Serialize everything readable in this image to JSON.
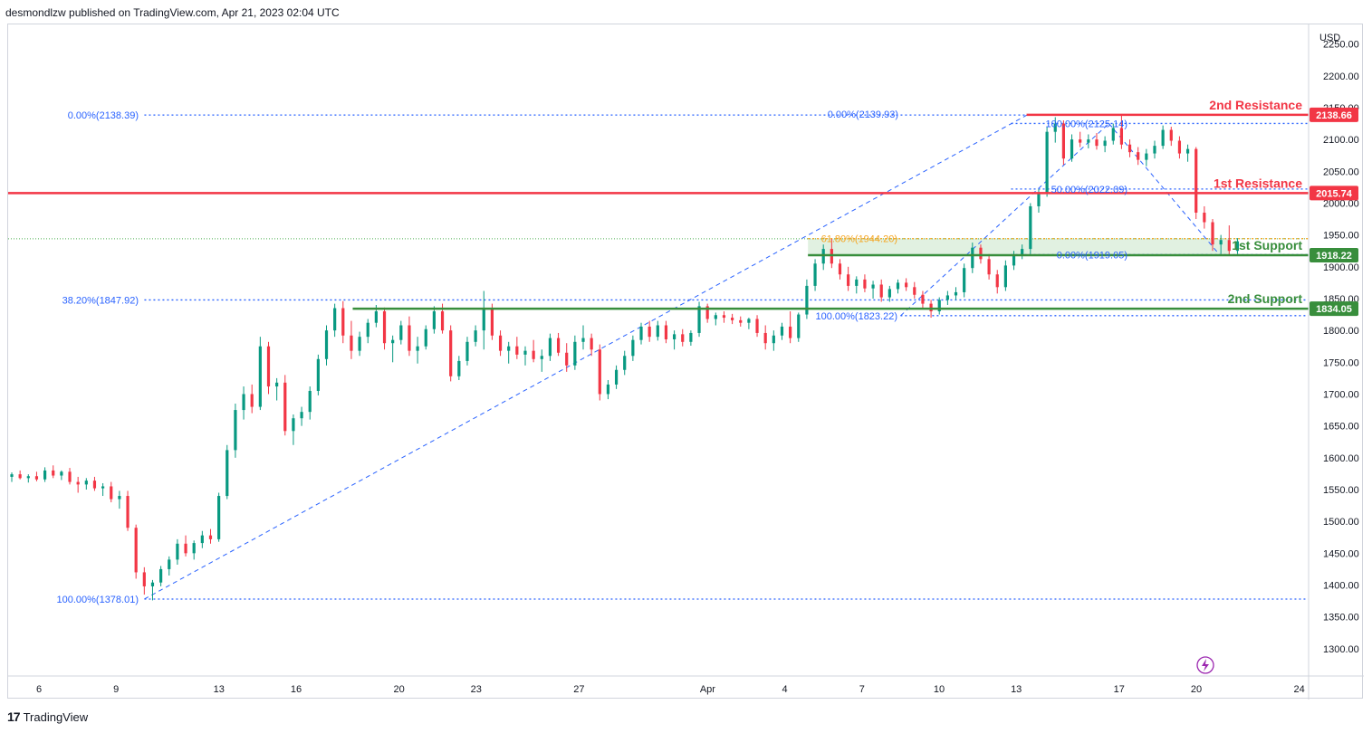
{
  "header": {
    "text": "desmondlzw published on TradingView.com, Apr 21, 2023 02:04 UTC"
  },
  "footer": {
    "logo": "17",
    "brand": "TradingView"
  },
  "chart_data": {
    "type": "candlestick",
    "currency_label": "USD",
    "y_ticks": [
      "2250.00",
      "2200.00",
      "2150.00",
      "2100.00",
      "2050.00",
      "2000.00",
      "1950.00",
      "1900.00",
      "1850.00",
      "1800.00",
      "1750.00",
      "1700.00",
      "1650.00",
      "1600.00",
      "1550.00",
      "1500.00",
      "1450.00",
      "1400.00",
      "1350.00",
      "1300.00"
    ],
    "ylim": [
      1260,
      2275
    ],
    "x_ticks": [
      {
        "label": "6",
        "day": 6
      },
      {
        "label": "9",
        "day": 9
      },
      {
        "label": "13",
        "day": 13
      },
      {
        "label": "16",
        "day": 16
      },
      {
        "label": "20",
        "day": 20
      },
      {
        "label": "23",
        "day": 23
      },
      {
        "label": "27",
        "day": 27
      },
      {
        "label": "Apr",
        "day": 32
      },
      {
        "label": "4",
        "day": 35
      },
      {
        "label": "7",
        "day": 38
      },
      {
        "label": "10",
        "day": 41
      },
      {
        "label": "13",
        "day": 44
      },
      {
        "label": "17",
        "day": 48
      },
      {
        "label": "20",
        "day": 51
      },
      {
        "label": "24",
        "day": 55
      }
    ],
    "levels": [
      {
        "name": "2nd Resistance",
        "value": 2138.66,
        "label": "2138.66",
        "color": "#f23645"
      },
      {
        "name": "1st Resistance",
        "value": 2015.74,
        "label": "2015.74",
        "color": "#f23645"
      },
      {
        "name": "1st Support",
        "value": 1918.22,
        "label": "1918.22",
        "color": "#388e3c"
      },
      {
        "name": "2nd Support",
        "value": 1834.05,
        "label": "1834.05",
        "color": "#388e3c"
      }
    ],
    "fib_labels": [
      {
        "text": "0.00%(2138.39)",
        "value": 2138.39,
        "color": "#2962ff"
      },
      {
        "text": "38.20%(1847.92)",
        "value": 1847.92,
        "color": "#2962ff"
      },
      {
        "text": "100.00%(1378.01)",
        "value": 1378.01,
        "color": "#2962ff"
      },
      {
        "text": "0.00%(2139.93)",
        "value": 2139.93,
        "color": "#2962ff"
      },
      {
        "text": "100.00%(2125.14)",
        "value": 2125.14,
        "color": "#2962ff"
      },
      {
        "text": "50.00%(2022.09)",
        "value": 2022.09,
        "color": "#2962ff"
      },
      {
        "text": "61.80%(1944.20)",
        "value": 1944.2,
        "color": "#f5a623"
      },
      {
        "text": "0.00%(1919.05)",
        "value": 1919.05,
        "color": "#2962ff"
      },
      {
        "text": "100.00%(1823.22)",
        "value": 1823.22,
        "color": "#2962ff"
      }
    ],
    "current_price": 1944,
    "candles": [
      [
        1572,
        1580,
        1568,
        1575
      ],
      [
        1575,
        1582,
        1568,
        1570
      ],
      [
        1570,
        1577,
        1562,
        1574
      ],
      [
        1574,
        1580,
        1566,
        1568
      ],
      [
        1568,
        1574,
        1561,
        1571
      ],
      [
        1571,
        1578,
        1563,
        1566
      ],
      [
        1566,
        1585,
        1562,
        1580
      ],
      [
        1580,
        1588,
        1568,
        1572
      ],
      [
        1572,
        1580,
        1565,
        1578
      ],
      [
        1578,
        1584,
        1558,
        1562
      ],
      [
        1562,
        1570,
        1545,
        1558
      ],
      [
        1558,
        1568,
        1550,
        1564
      ],
      [
        1564,
        1570,
        1548,
        1552
      ],
      [
        1552,
        1560,
        1540,
        1555
      ],
      [
        1555,
        1562,
        1530,
        1535
      ],
      [
        1535,
        1548,
        1520,
        1540
      ],
      [
        1540,
        1548,
        1485,
        1490
      ],
      [
        1490,
        1495,
        1410,
        1420
      ],
      [
        1420,
        1428,
        1385,
        1398
      ],
      [
        1398,
        1408,
        1376,
        1404
      ],
      [
        1404,
        1430,
        1398,
        1425
      ],
      [
        1425,
        1445,
        1415,
        1440
      ],
      [
        1440,
        1472,
        1432,
        1465
      ],
      [
        1465,
        1478,
        1445,
        1450
      ],
      [
        1450,
        1470,
        1440,
        1466
      ],
      [
        1466,
        1485,
        1458,
        1478
      ],
      [
        1478,
        1488,
        1465,
        1472
      ],
      [
        1472,
        1545,
        1468,
        1540
      ],
      [
        1540,
        1620,
        1535,
        1612
      ],
      [
        1612,
        1685,
        1600,
        1675
      ],
      [
        1675,
        1712,
        1660,
        1700
      ],
      [
        1700,
        1715,
        1670,
        1680
      ],
      [
        1680,
        1790,
        1675,
        1775
      ],
      [
        1775,
        1782,
        1700,
        1712
      ],
      [
        1712,
        1725,
        1690,
        1718
      ],
      [
        1718,
        1730,
        1635,
        1642
      ],
      [
        1642,
        1668,
        1620,
        1662
      ],
      [
        1662,
        1680,
        1650,
        1672
      ],
      [
        1672,
        1712,
        1660,
        1705
      ],
      [
        1705,
        1762,
        1698,
        1755
      ],
      [
        1755,
        1808,
        1745,
        1800
      ],
      [
        1800,
        1842,
        1790,
        1835
      ],
      [
        1835,
        1846,
        1780,
        1792
      ],
      [
        1792,
        1815,
        1755,
        1768
      ],
      [
        1768,
        1798,
        1760,
        1790
      ],
      [
        1790,
        1818,
        1780,
        1812
      ],
      [
        1812,
        1840,
        1805,
        1830
      ],
      [
        1830,
        1836,
        1770,
        1780
      ],
      [
        1780,
        1792,
        1750,
        1785
      ],
      [
        1785,
        1815,
        1778,
        1808
      ],
      [
        1808,
        1822,
        1760,
        1768
      ],
      [
        1768,
        1790,
        1748,
        1775
      ],
      [
        1775,
        1808,
        1770,
        1802
      ],
      [
        1802,
        1838,
        1795,
        1830
      ],
      [
        1830,
        1842,
        1795,
        1800
      ],
      [
        1800,
        1808,
        1720,
        1728
      ],
      [
        1728,
        1760,
        1722,
        1752
      ],
      [
        1752,
        1790,
        1745,
        1782
      ],
      [
        1782,
        1808,
        1775,
        1800
      ],
      [
        1800,
        1862,
        1770,
        1835
      ],
      [
        1835,
        1842,
        1785,
        1792
      ],
      [
        1792,
        1800,
        1760,
        1768
      ],
      [
        1768,
        1782,
        1748,
        1775
      ],
      [
        1775,
        1790,
        1755,
        1762
      ],
      [
        1762,
        1775,
        1745,
        1768
      ],
      [
        1768,
        1785,
        1750,
        1755
      ],
      [
        1755,
        1770,
        1735,
        1760
      ],
      [
        1760,
        1795,
        1752,
        1788
      ],
      [
        1788,
        1796,
        1760,
        1765
      ],
      [
        1765,
        1780,
        1735,
        1745
      ],
      [
        1745,
        1792,
        1738,
        1782
      ],
      [
        1782,
        1808,
        1770,
        1788
      ],
      [
        1788,
        1795,
        1760,
        1770
      ],
      [
        1770,
        1778,
        1690,
        1700
      ],
      [
        1700,
        1722,
        1692,
        1715
      ],
      [
        1715,
        1745,
        1708,
        1738
      ],
      [
        1738,
        1768,
        1730,
        1760
      ],
      [
        1760,
        1792,
        1752,
        1785
      ],
      [
        1785,
        1812,
        1778,
        1806
      ],
      [
        1806,
        1815,
        1782,
        1790
      ],
      [
        1790,
        1815,
        1784,
        1808
      ],
      [
        1808,
        1815,
        1780,
        1786
      ],
      [
        1786,
        1800,
        1770,
        1794
      ],
      [
        1794,
        1802,
        1775,
        1782
      ],
      [
        1782,
        1800,
        1776,
        1796
      ],
      [
        1796,
        1845,
        1790,
        1838
      ],
      [
        1838,
        1842,
        1812,
        1818
      ],
      [
        1818,
        1828,
        1808,
        1824
      ],
      [
        1824,
        1830,
        1812,
        1820
      ],
      [
        1820,
        1826,
        1810,
        1816
      ],
      [
        1816,
        1822,
        1806,
        1812
      ],
      [
        1812,
        1820,
        1802,
        1818
      ],
      [
        1818,
        1824,
        1790,
        1796
      ],
      [
        1796,
        1808,
        1770,
        1780
      ],
      [
        1780,
        1800,
        1768,
        1792
      ],
      [
        1792,
        1812,
        1785,
        1806
      ],
      [
        1806,
        1830,
        1780,
        1788
      ],
      [
        1788,
        1828,
        1782,
        1825
      ],
      [
        1825,
        1880,
        1818,
        1870
      ],
      [
        1870,
        1912,
        1862,
        1905
      ],
      [
        1905,
        1935,
        1895,
        1928
      ],
      [
        1928,
        1944,
        1898,
        1905
      ],
      [
        1905,
        1912,
        1880,
        1888
      ],
      [
        1888,
        1900,
        1862,
        1870
      ],
      [
        1870,
        1885,
        1858,
        1880
      ],
      [
        1880,
        1888,
        1860,
        1866
      ],
      [
        1866,
        1878,
        1850,
        1872
      ],
      [
        1872,
        1880,
        1845,
        1852
      ],
      [
        1852,
        1870,
        1845,
        1865
      ],
      [
        1865,
        1880,
        1858,
        1875
      ],
      [
        1875,
        1882,
        1862,
        1868
      ],
      [
        1868,
        1876,
        1850,
        1856
      ],
      [
        1856,
        1862,
        1835,
        1842
      ],
      [
        1842,
        1848,
        1820,
        1830
      ],
      [
        1830,
        1852,
        1825,
        1848
      ],
      [
        1848,
        1862,
        1840,
        1855
      ],
      [
        1855,
        1868,
        1848,
        1860
      ],
      [
        1860,
        1905,
        1852,
        1898
      ],
      [
        1898,
        1938,
        1890,
        1930
      ],
      [
        1930,
        1935,
        1905,
        1912
      ],
      [
        1912,
        1920,
        1880,
        1888
      ],
      [
        1888,
        1895,
        1858,
        1868
      ],
      [
        1868,
        1910,
        1862,
        1902
      ],
      [
        1902,
        1925,
        1895,
        1918
      ],
      [
        1918,
        1935,
        1912,
        1928
      ],
      [
        1928,
        2000,
        1920,
        1995
      ],
      [
        1995,
        2022,
        1985,
        2015
      ],
      [
        2015,
        2120,
        2010,
        2112
      ],
      [
        2112,
        2135,
        2095,
        2125
      ],
      [
        2125,
        2130,
        2060,
        2070
      ],
      [
        2070,
        2108,
        2065,
        2100
      ],
      [
        2100,
        2112,
        2088,
        2095
      ],
      [
        2095,
        2108,
        2086,
        2100
      ],
      [
        2100,
        2110,
        2084,
        2090
      ],
      [
        2090,
        2105,
        2080,
        2098
      ],
      [
        2098,
        2125,
        2092,
        2118
      ],
      [
        2118,
        2140,
        2085,
        2092
      ],
      [
        2092,
        2100,
        2072,
        2080
      ],
      [
        2080,
        2088,
        2060,
        2068
      ],
      [
        2068,
        2085,
        2058,
        2078
      ],
      [
        2078,
        2098,
        2070,
        2090
      ],
      [
        2090,
        2122,
        2085,
        2115
      ],
      [
        2115,
        2120,
        2090,
        2098
      ],
      [
        2098,
        2105,
        2070,
        2078
      ],
      [
        2078,
        2092,
        2065,
        2085
      ],
      [
        2085,
        2088,
        1975,
        1985
      ],
      [
        1985,
        1995,
        1960,
        1970
      ],
      [
        1970,
        1975,
        1925,
        1935
      ],
      [
        1935,
        1950,
        1920,
        1942
      ],
      [
        1942,
        1965,
        1918,
        1925
      ],
      [
        1925,
        1945,
        1920,
        1940
      ]
    ]
  }
}
